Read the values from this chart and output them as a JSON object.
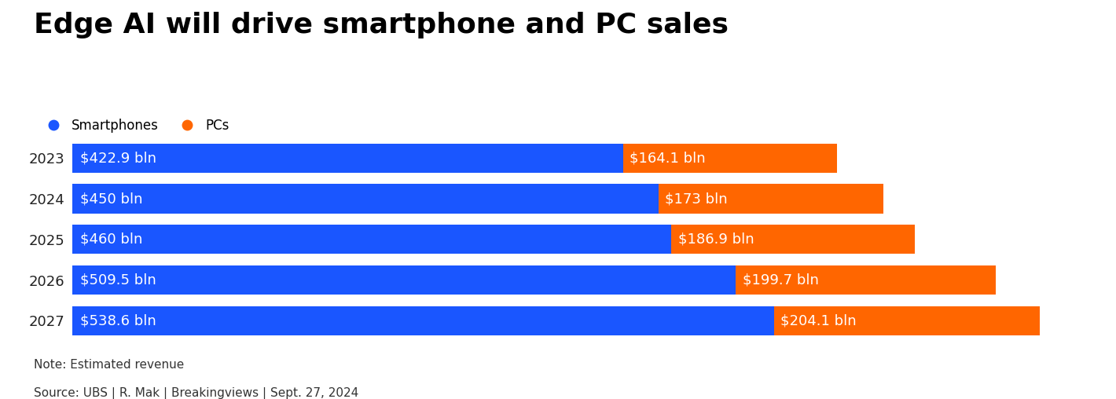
{
  "title": "Edge AI will drive smartphone and PC sales",
  "years": [
    "2023",
    "2024",
    "2025",
    "2026",
    "2027"
  ],
  "smartphones": [
    422.9,
    450,
    460,
    509.5,
    538.6
  ],
  "pcs": [
    164.1,
    173,
    186.9,
    199.7,
    204.1
  ],
  "smartphone_labels": [
    "$422.9 bln",
    "$450 bln",
    "$460 bln",
    "$509.5 bln",
    "$538.6 bln"
  ],
  "pc_labels": [
    "$164.1 bln",
    "$173 bln",
    "$186.9 bln",
    "$199.7 bln",
    "$204.1 bln"
  ],
  "smartphone_color": "#1a56ff",
  "pc_color": "#ff6600",
  "text_color_white": "#ffffff",
  "background_color": "#ffffff",
  "note": "Note: Estimated revenue",
  "source": "Source: UBS | R. Mak | Breakingviews | Sept. 27, 2024",
  "legend_smartphone": "Smartphones",
  "legend_pc": "PCs",
  "title_fontsize": 26,
  "label_fontsize": 13,
  "year_fontsize": 13,
  "bar_height": 0.72,
  "note_fontsize": 11,
  "xlim_max": 780
}
